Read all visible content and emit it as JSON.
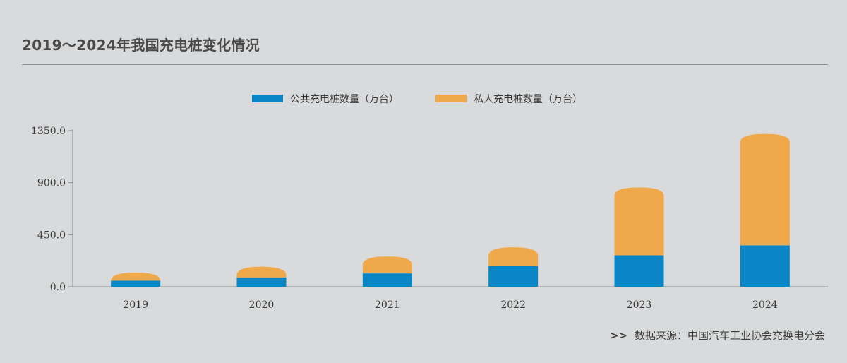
{
  "title": "2019～2024年我国充电桩变化情况",
  "source": {
    "arrows": ">>",
    "text": "数据来源：中国汽车工业协会充换电分会"
  },
  "colors": {
    "public": "#0a86c6",
    "private": "#f0a94a",
    "axis": "#8c8c8c",
    "background": "#d9dadb"
  },
  "chart_data": {
    "type": "bar",
    "stacked": true,
    "categories": [
      "2019",
      "2020",
      "2021",
      "2022",
      "2023",
      "2024"
    ],
    "series": [
      {
        "name": "公共充电桩数量（万台）",
        "values": [
          52,
          81,
          115,
          180,
          272,
          358
        ]
      },
      {
        "name": "私人充电桩数量（万台）",
        "values": [
          70,
          92,
          147,
          161,
          587,
          964
        ]
      }
    ],
    "yticks": [
      "0.0",
      "450.0",
      "900.0",
      "1350.0"
    ],
    "ylim": [
      0,
      1350
    ],
    "grid": false,
    "legend": "top-center"
  }
}
